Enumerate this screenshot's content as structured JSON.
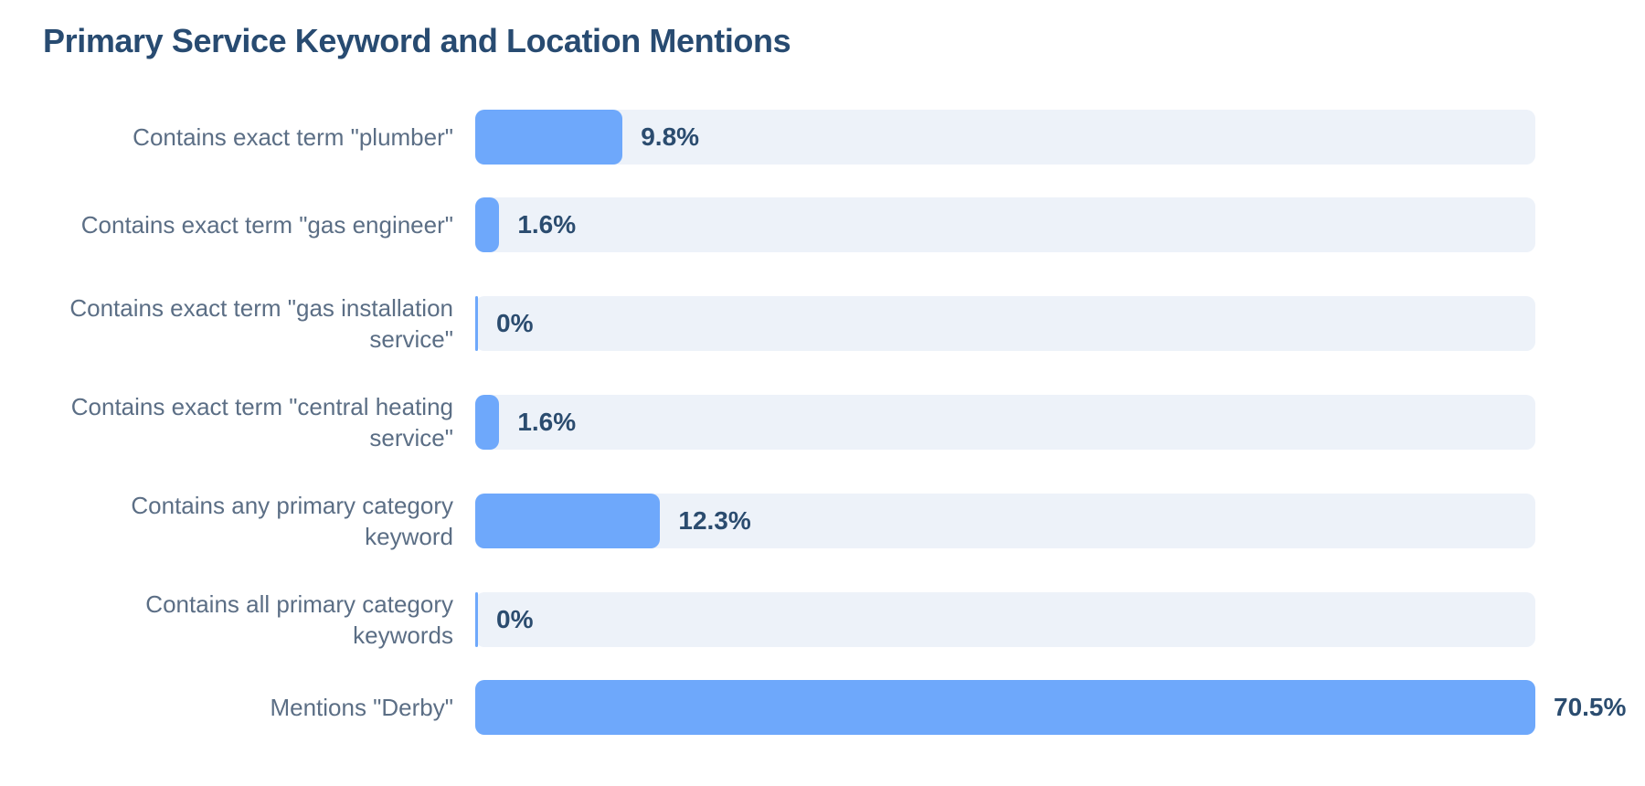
{
  "chart_data": {
    "type": "bar",
    "orientation": "horizontal",
    "title": "Primary Service Keyword and Location Mentions",
    "xlabel": "",
    "ylabel": "",
    "xlim": [
      0,
      70.5
    ],
    "grid": false,
    "categories": [
      "Contains exact term \"plumber\"",
      "Contains exact term \"gas engineer\"",
      "Contains exact term \"gas installation service\"",
      "Contains exact term \"central heating service\"",
      "Contains any primary category keyword",
      "Contains all primary category keywords",
      "Mentions \"Derby\""
    ],
    "values": [
      9.8,
      1.6,
      0,
      1.6,
      12.3,
      0,
      70.5
    ],
    "value_labels": [
      "9.8%",
      "1.6%",
      "0%",
      "1.6%",
      "12.3%",
      "0%",
      "70.5%"
    ],
    "colors": {
      "bar": "#6ea8fb",
      "track": "#edf2f9",
      "title": "#284b71",
      "label": "#5b6e85",
      "value": "#2b4c6f"
    }
  }
}
